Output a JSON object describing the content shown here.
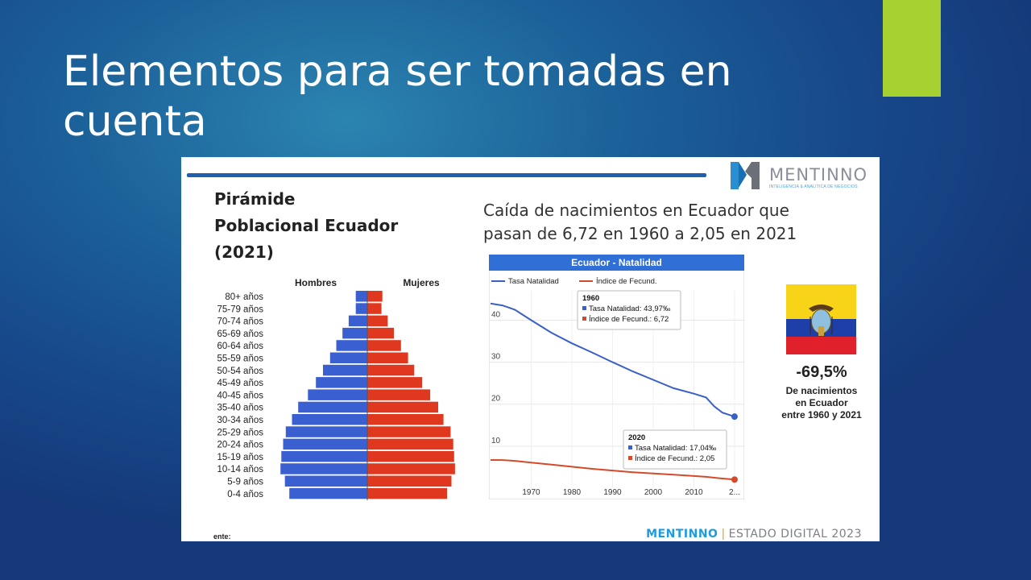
{
  "slide": {
    "title": "Elementos para ser tomadas en cuenta",
    "accent_color": "#a6d030"
  },
  "logo": {
    "name": "MENTINNO",
    "tagline": "INTELIGENCIA & ANALÍTICA DE NEGOCIOS"
  },
  "pyramid": {
    "title_lines": [
      "Pirámide",
      "Poblacional Ecuador",
      "(2021)"
    ],
    "male_label": "Hombres",
    "female_label": "Mujeres",
    "male_color": "#3a5fd0",
    "female_color": "#e0381f"
  },
  "natalidad": {
    "headline_lines": [
      "Caída de nacimientos en Ecuador que",
      "pasan de 6,72 en 1960 a 2,05 en 2021"
    ],
    "chart_title": "Ecuador - Natalidad",
    "legend": [
      "Tasa Natalidad",
      "Índice de Fecund."
    ],
    "tooltip_1960": {
      "year": "1960",
      "tasa": "Tasa Natalidad: 43,97‰",
      "indice": "Índice de Fecund.: 6,72"
    },
    "tooltip_2020": {
      "year": "2020",
      "tasa": "Tasa Natalidad: 17,04‰",
      "indice": "Índice de Fecund.: 2,05"
    }
  },
  "stat": {
    "percent": "-69,5%",
    "description_lines": [
      "De nacimientos",
      "en Ecuador",
      "entre 1960 y 2021"
    ]
  },
  "source_label": "ente:",
  "footer": {
    "brand": "MENTINNO",
    "separator": "|",
    "rest": "ESTADO DIGITAL 2023"
  },
  "chart_data": [
    {
      "type": "bar",
      "title": "Pirámide Poblacional Ecuador (2021)",
      "categories": [
        "80+ años",
        "75-79 años",
        "70-74 años",
        "65-69 años",
        "60-64 años",
        "55-59 años",
        "50-54 años",
        "45-49 años",
        "40-45 años",
        "35-40 años",
        "30-34 años",
        "25-29 años",
        "20-24 años",
        "15-19 años",
        "10-14 años",
        "5-9 años",
        "0-4 años"
      ],
      "series": [
        {
          "name": "Hombres",
          "values": [
            0.13,
            0.13,
            0.21,
            0.28,
            0.35,
            0.42,
            0.5,
            0.58,
            0.67,
            0.78,
            0.85,
            0.92,
            0.95,
            0.97,
            0.98,
            0.93,
            0.88
          ]
        },
        {
          "name": "Mujeres",
          "values": [
            0.17,
            0.16,
            0.23,
            0.3,
            0.38,
            0.46,
            0.53,
            0.62,
            0.71,
            0.8,
            0.86,
            0.94,
            0.97,
            0.98,
            0.99,
            0.95,
            0.9
          ]
        }
      ]
    },
    {
      "type": "line",
      "title": "Ecuador - Natalidad",
      "x": [
        1960,
        1963,
        1966,
        1970,
        1975,
        1980,
        1985,
        1990,
        1995,
        2000,
        2005,
        2010,
        2013,
        2015,
        2017,
        2020
      ],
      "series": [
        {
          "name": "Tasa Natalidad",
          "values": [
            43.97,
            43.5,
            42.5,
            40.0,
            37.0,
            34.5,
            32.3,
            30.0,
            27.8,
            25.8,
            23.8,
            22.5,
            21.6,
            19.5,
            18.0,
            17.04
          ]
        },
        {
          "name": "Índice de Fecund.",
          "values": [
            6.72,
            6.7,
            6.5,
            6.1,
            5.6,
            5.1,
            4.6,
            4.2,
            3.8,
            3.5,
            3.2,
            2.9,
            2.7,
            2.5,
            2.3,
            2.05
          ]
        }
      ],
      "x_ticks": [
        "1970",
        "1980",
        "1990",
        "2000",
        "2010",
        "2..."
      ],
      "y_ticks": [
        "10",
        "20",
        "30",
        "40"
      ],
      "ylim": [
        0,
        47
      ]
    }
  ]
}
